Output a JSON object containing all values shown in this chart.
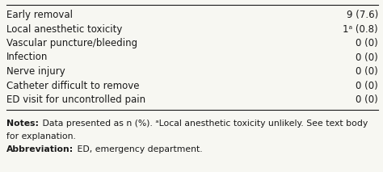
{
  "rows": [
    {
      "label": "Early removal",
      "value": "9 (7.6)"
    },
    {
      "label": "Local anesthetic toxicity",
      "value": "1ᵃ (0.8)"
    },
    {
      "label": "Vascular puncture/bleeding",
      "value": "0 (0)"
    },
    {
      "label": "Infection",
      "value": "0 (0)"
    },
    {
      "label": "Nerve injury",
      "value": "0 (0)"
    },
    {
      "label": "Catheter difficult to remove",
      "value": "0 (0)"
    },
    {
      "label": "ED visit for uncontrolled pain",
      "value": "0 (0)"
    }
  ],
  "notes_bold": "Notes:",
  "notes_rest": " Data presented as n (%). ᵃLocal anesthetic toxicity unlikely. See text body",
  "notes_line2": "for explanation.",
  "abbrev_bold": "Abbreviation:",
  "abbrev_rest": " ED, emergency department.",
  "bg_color": "#f7f7f2",
  "text_color": "#1a1a1a",
  "font_size": 8.5,
  "note_font_size": 7.8,
  "fig_width": 4.74,
  "fig_height": 2.13,
  "dpi": 100
}
